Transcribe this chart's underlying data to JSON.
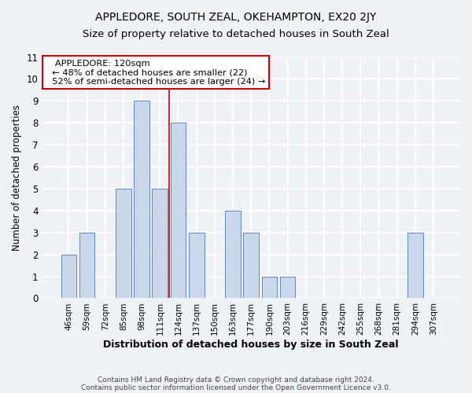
{
  "title": "APPLEDORE, SOUTH ZEAL, OKEHAMPTON, EX20 2JY",
  "subtitle": "Size of property relative to detached houses in South Zeal",
  "xlabel": "Distribution of detached houses by size in South Zeal",
  "ylabel": "Number of detached properties",
  "categories": [
    "46sqm",
    "59sqm",
    "72sqm",
    "85sqm",
    "98sqm",
    "111sqm",
    "124sqm",
    "137sqm",
    "150sqm",
    "163sqm",
    "177sqm",
    "190sqm",
    "203sqm",
    "216sqm",
    "229sqm",
    "242sqm",
    "255sqm",
    "268sqm",
    "281sqm",
    "294sqm",
    "307sqm"
  ],
  "values": [
    2,
    3,
    0,
    5,
    9,
    5,
    8,
    3,
    0,
    4,
    3,
    1,
    1,
    0,
    0,
    0,
    0,
    0,
    0,
    3,
    0
  ],
  "bar_color": "#c8d8ea",
  "bar_edge_color": "#6688bb",
  "redline_x": 5.5,
  "annotation_title": "APPLEDORE: 120sqm",
  "annotation_line1": "← 48% of detached houses are smaller (22)",
  "annotation_line2": "52% of semi-detached houses are larger (24) →",
  "annotation_box_color": "#ffffff",
  "annotation_box_edge_color": "#cc0000",
  "ylim": [
    0,
    11
  ],
  "yticks": [
    0,
    1,
    2,
    3,
    4,
    5,
    6,
    7,
    8,
    9,
    10,
    11
  ],
  "footer1": "Contains HM Land Registry data © Crown copyright and database right 2024.",
  "footer2": "Contains public sector information licensed under the Open Government Licence v3.0.",
  "bg_color": "#eef2f7",
  "plot_bg_color": "#eef2f7",
  "grid_color": "#ffffff",
  "title_fontsize": 10,
  "subtitle_fontsize": 9.5
}
